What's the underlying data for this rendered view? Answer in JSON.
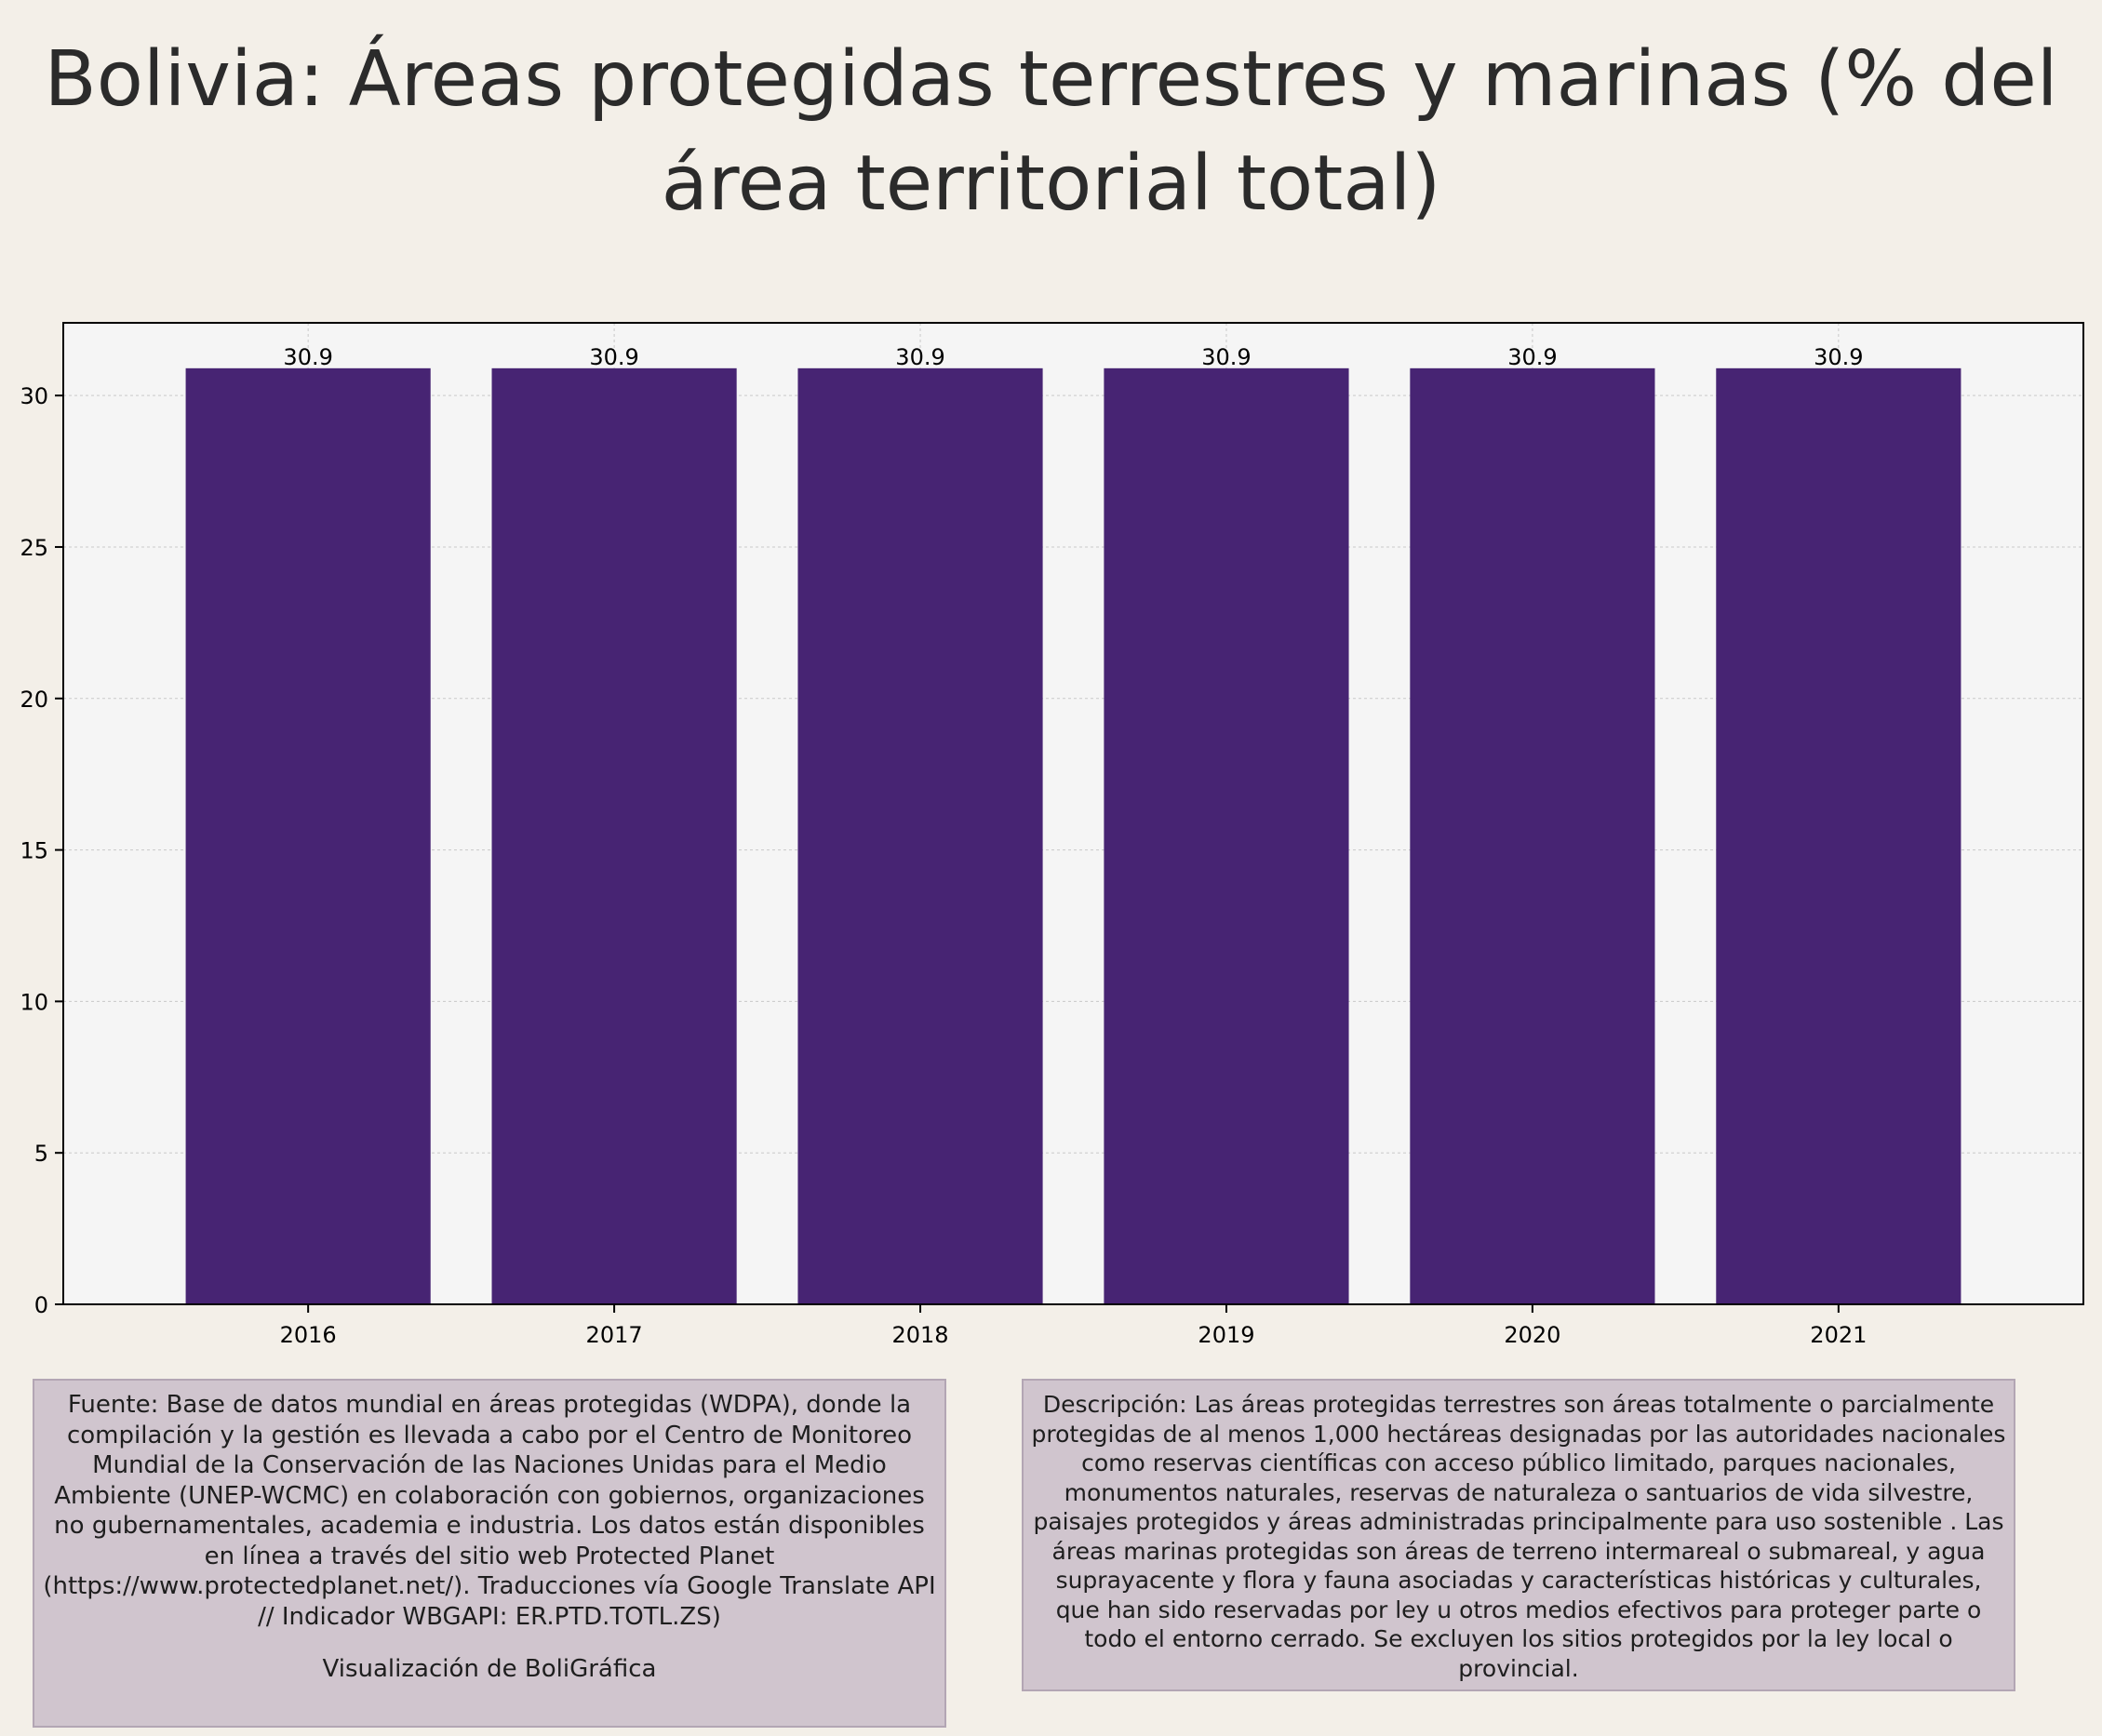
{
  "chart_data": {
    "type": "bar",
    "title": "Bolivia:  Áreas protegidas terrestres y marinas (% del área territorial total)",
    "categories": [
      "2016",
      "2017",
      "2018",
      "2019",
      "2020",
      "2021"
    ],
    "values": [
      30.9,
      30.9,
      30.9,
      30.9,
      30.9,
      30.9
    ],
    "data_labels": [
      "30.9",
      "30.9",
      "30.9",
      "30.9",
      "30.9",
      "30.9"
    ],
    "xlabel": "",
    "ylabel": "",
    "ylim": [
      0,
      32.4
    ],
    "yticks": [
      0,
      5,
      10,
      15,
      20,
      25,
      30
    ],
    "grid": true,
    "colors": {
      "bar": "#472473",
      "plot_background": "#f5f5f5",
      "page_background": "#f3efe8",
      "gridline": "#c9c9c9",
      "axis": "#000000"
    }
  },
  "notes": {
    "source_text": "Fuente: Base de datos mundial en áreas protegidas (WDPA), donde la compilación y la gestión es llevada a cabo por el Centro de Monitoreo Mundial de la Conservación de las Naciones Unidas para el Medio Ambiente (UNEP-WCMC) en colaboración con gobiernos, organizaciones no gubernamentales, academia e industria. Los datos están disponibles en línea a través del sitio web Protected Planet (https://www.protectedplanet.net/). Traducciones vía Google Translate API // Indicador WBGAPI: ER.PTD.TOTL.ZS)",
    "credit_text": "Visualización de BoliGráfica",
    "description_text": "Descripción: Las áreas protegidas terrestres son áreas totalmente o parcialmente protegidas de al menos 1,000 hectáreas designadas por las autoridades nacionales como reservas científicas con acceso público limitado, parques nacionales, monumentos naturales, reservas de naturaleza o santuarios de vida silvestre, paisajes protegidos y áreas administradas principalmente para uso sostenible . Las áreas marinas protegidas son áreas de terreno intermareal o submareal, y agua suprayacente y flora y fauna asociadas y características históricas y culturales, que han sido reservadas por ley u otros medios efectivos para proteger parte o todo el entorno cerrado. Se excluyen los sitios protegidos por la ley local o provincial."
  }
}
